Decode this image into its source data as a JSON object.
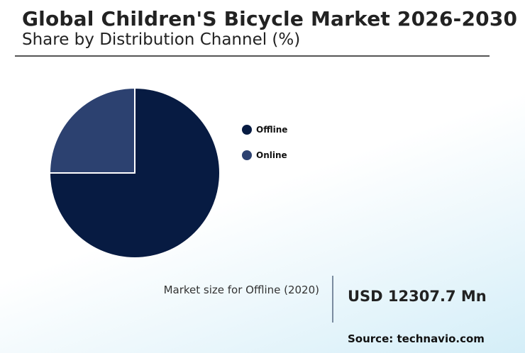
{
  "header": {
    "title": "Global Children'S Bicycle Market 2026-2030",
    "subtitle": "Share by Distribution Channel (%)"
  },
  "chart_data": {
    "type": "pie",
    "title": "Global Children'S Bicycle Market 2026-2030",
    "subtitle": "Share by Distribution Channel (%)",
    "categories": [
      "Offline",
      "Online"
    ],
    "values": [
      75,
      25
    ],
    "colors": [
      "#071b42",
      "#2c4170"
    ],
    "legend_position": "right"
  },
  "legend": {
    "items": [
      {
        "label": "Offline",
        "color": "#071b42"
      },
      {
        "label": "Online",
        "color": "#2c4170"
      }
    ]
  },
  "market": {
    "label": "Market size for Offline (2020)",
    "value": "USD 12307.7 Mn"
  },
  "source": "Source: technavio.com",
  "colors": {
    "text": "#222222",
    "slice_border": "#ffffff",
    "background_tint": "#d4eef8"
  }
}
